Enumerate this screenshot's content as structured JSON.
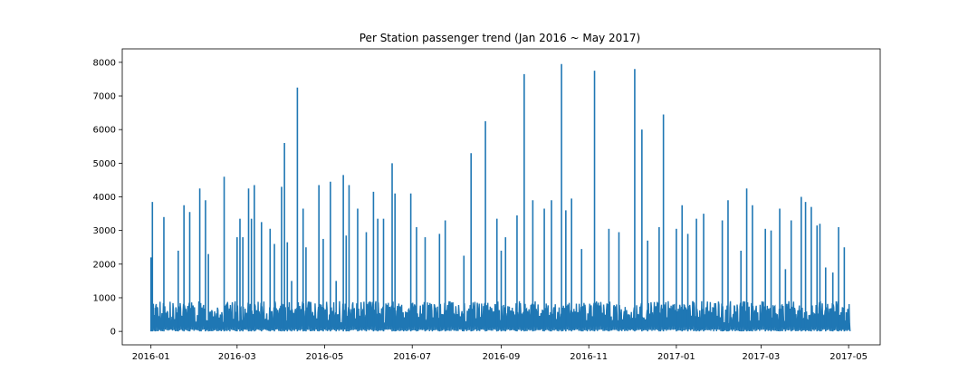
{
  "chart_data": {
    "type": "line",
    "title": "Per Station passenger trend (Jan 2016 ~ May 2017)",
    "xlabel": "",
    "ylabel": "",
    "x_ticks": [
      "2016-01",
      "2016-03",
      "2016-05",
      "2016-07",
      "2016-09",
      "2016-11",
      "2017-01",
      "2017-03",
      "2017-05"
    ],
    "y_ticks": [
      0,
      1000,
      2000,
      3000,
      4000,
      5000,
      6000,
      7000,
      8000
    ],
    "xlim": [
      "2015-12-12",
      "2017-05-23"
    ],
    "ylim": [
      -400,
      8400
    ],
    "grid": false,
    "legend": "none",
    "series": [
      {
        "color": "#1f77b4",
        "baseline": {
          "min": 0,
          "max": 900,
          "typical": 400
        },
        "x": [
          "2016-01-01",
          "2016-01-02",
          "2016-01-04",
          "2016-01-10",
          "2016-01-20",
          "2016-01-24",
          "2016-01-28",
          "2016-02-04",
          "2016-02-08",
          "2016-02-10",
          "2016-02-21",
          "2016-03-01",
          "2016-03-03",
          "2016-03-05",
          "2016-03-09",
          "2016-03-11",
          "2016-03-13",
          "2016-03-18",
          "2016-03-24",
          "2016-03-27",
          "2016-04-01",
          "2016-04-03",
          "2016-04-05",
          "2016-04-08",
          "2016-04-12",
          "2016-04-16",
          "2016-04-18",
          "2016-04-27",
          "2016-04-30",
          "2016-05-05",
          "2016-05-09",
          "2016-05-14",
          "2016-05-16",
          "2016-05-18",
          "2016-05-24",
          "2016-05-30",
          "2016-06-04",
          "2016-06-07",
          "2016-06-11",
          "2016-06-17",
          "2016-06-19",
          "2016-06-30",
          "2016-07-04",
          "2016-07-10",
          "2016-07-20",
          "2016-07-24",
          "2016-08-06",
          "2016-08-11",
          "2016-08-21",
          "2016-08-29",
          "2016-09-01",
          "2016-09-04",
          "2016-09-12",
          "2016-09-17",
          "2016-09-23",
          "2016-10-01",
          "2016-10-06",
          "2016-10-13",
          "2016-10-16",
          "2016-10-20",
          "2016-10-27",
          "2016-11-05",
          "2016-11-15",
          "2016-11-22",
          "2016-12-03",
          "2016-12-08",
          "2016-12-12",
          "2016-12-20",
          "2016-12-23",
          "2017-01-01",
          "2017-01-05",
          "2017-01-09",
          "2017-01-15",
          "2017-01-20",
          "2017-02-02",
          "2017-02-06",
          "2017-02-15",
          "2017-02-19",
          "2017-02-23",
          "2017-03-04",
          "2017-03-08",
          "2017-03-14",
          "2017-03-18",
          "2017-03-22",
          "2017-03-29",
          "2017-04-01",
          "2017-04-05",
          "2017-04-09",
          "2017-04-11",
          "2017-04-15",
          "2017-04-20",
          "2017-04-24",
          "2017-04-28"
        ],
        "peaks": [
          2200,
          3850,
          700,
          3400,
          2400,
          3750,
          3550,
          4250,
          3900,
          2300,
          4600,
          2800,
          3350,
          2800,
          4250,
          3350,
          4350,
          3250,
          3050,
          2600,
          4300,
          5600,
          2650,
          1500,
          7250,
          3650,
          2500,
          4350,
          2750,
          4450,
          1500,
          4650,
          2850,
          4350,
          3650,
          2950,
          4150,
          3350,
          3350,
          5000,
          4100,
          4100,
          3100,
          2800,
          2900,
          3300,
          2250,
          5300,
          6250,
          3350,
          2400,
          2800,
          3450,
          7650,
          3900,
          3650,
          3900,
          7950,
          3600,
          3950,
          2450,
          7750,
          3050,
          2950,
          7800,
          6000,
          2700,
          3100,
          6450,
          3050,
          3750,
          2900,
          3350,
          3500,
          3300,
          3900,
          2400,
          4250,
          3750,
          3050,
          3000,
          3650,
          1850,
          3300,
          4000,
          3850,
          3700,
          3150,
          3200,
          1900,
          1750,
          3100,
          2500
        ]
      }
    ]
  }
}
